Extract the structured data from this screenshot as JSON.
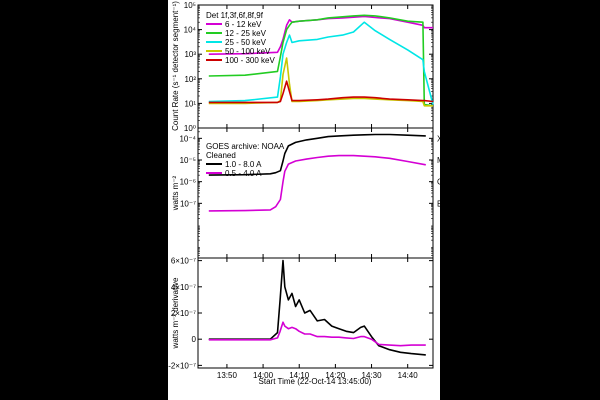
{
  "chart_data": [
    {
      "type": "line",
      "panel": "rhessi-count-rate",
      "ylabel": "Count Rate (s⁻¹ detector segment⁻¹)",
      "yscale": "log",
      "ylim": [
        1,
        100000
      ],
      "yticks": [
        "10⁵",
        "10⁴",
        "10³",
        "10²",
        "10¹",
        "10⁰"
      ],
      "legend_title": "Det 1f,3f,6f,8f,9f",
      "legend_position": "top-left",
      "x_minutes_since_1345": [
        0,
        10,
        19,
        19.8,
        20.5,
        21.5,
        22.3,
        23,
        25,
        30,
        33,
        37,
        40,
        43,
        46,
        50,
        55,
        59.2,
        59.6,
        62
      ],
      "series": [
        {
          "name": "6 - 12 keV",
          "color": "#d400d4",
          "values": [
            1000,
            1050,
            1200,
            2000,
            4000,
            15000,
            25000,
            20000,
            22000,
            25000,
            28000,
            30000,
            32000,
            34000,
            31000,
            28000,
            20000,
            15000,
            12000,
            12000
          ]
        },
        {
          "name": "12 - 25 keV",
          "color": "#22cc22",
          "values": [
            130,
            140,
            200,
            800,
            3000,
            10000,
            15000,
            20000,
            22000,
            25000,
            30000,
            33000,
            36000,
            38000,
            36000,
            30000,
            22000,
            20000,
            9,
            8
          ]
        },
        {
          "name": "25 - 50 keV",
          "color": "#00e6e6",
          "values": [
            12,
            13,
            18,
            120,
            1000,
            3000,
            6000,
            3000,
            3500,
            4000,
            5000,
            6000,
            8000,
            20000,
            9000,
            4000,
            1500,
            600,
            200,
            9
          ]
        },
        {
          "name": "50 - 100 keV",
          "color": "#c8c800",
          "values": [
            10,
            10,
            11,
            13,
            150,
            700,
            60,
            12,
            12,
            13,
            14,
            15,
            16,
            16,
            15,
            14,
            13,
            12,
            8,
            8
          ]
        },
        {
          "name": "100 - 300 keV",
          "color": "#cc0000",
          "values": [
            11,
            11,
            11,
            12,
            25,
            80,
            30,
            13,
            13,
            14,
            15,
            17,
            18,
            18,
            17,
            15,
            14,
            13,
            13,
            12
          ]
        }
      ]
    },
    {
      "type": "line",
      "panel": "goes-flux",
      "ylabel": "watts m⁻²",
      "yscale": "log",
      "ylim": [
        3e-10,
        0.0003
      ],
      "yticks": [
        "10⁻⁴",
        "10⁻⁵",
        "10⁻⁶",
        "10⁻⁷"
      ],
      "right_labels": [
        "X",
        "M",
        "C",
        "B"
      ],
      "legend_title": "GOES archive: NOAA\nCleaned",
      "legend_position": "top-left",
      "x_minutes_since_1345": [
        0,
        10,
        17,
        18.5,
        19.8,
        20.5,
        21,
        22,
        24,
        27,
        30,
        33,
        36,
        40,
        43,
        46,
        50,
        55,
        60
      ],
      "series": [
        {
          "name": "1.0 - 8.0 A",
          "color": "#000000",
          "values": [
            2e-06,
            2.1e-06,
            2.3e-06,
            2.6e-06,
            3.2e-06,
            9e-06,
            2e-05,
            4.5e-05,
            6.5e-05,
            8.5e-05,
            0.0001,
            0.00012,
            0.00013,
            0.00014,
            0.000145,
            0.00015,
            0.00015,
            0.00014,
            0.00013
          ]
        },
        {
          "name": "0.5 - 4.0 A",
          "color": "#d400d4",
          "values": [
            4.5e-08,
            4.6e-08,
            5e-08,
            7e-08,
            1.5e-07,
            1e-06,
            3e-06,
            6.5e-06,
            9e-06,
            1.1e-05,
            1.3e-05,
            1.5e-05,
            1.6e-05,
            1.6e-05,
            1.5e-05,
            1.4e-05,
            1.2e-05,
            8.5e-06,
            6e-06
          ]
        }
      ]
    },
    {
      "type": "line",
      "panel": "goes-derivative",
      "ylabel": "watts m⁻² derivative",
      "ylim": [
        -2.2e-07,
        6.2e-07
      ],
      "yticks": [
        "6×10⁻⁷",
        "4×10⁻⁷",
        "2×10⁻⁷",
        "0",
        "-2×10⁻⁷"
      ],
      "x_minutes_since_1345": [
        0,
        10,
        17,
        19,
        19.7,
        20.5,
        21,
        22,
        23,
        24,
        25,
        26.5,
        28,
        30,
        32,
        34,
        36,
        38,
        40,
        42,
        43,
        45,
        47,
        50,
        53,
        56,
        60
      ],
      "series": [
        {
          "name": "1.0 - 8.0 A",
          "color": "#000000",
          "values": [
            0,
            0,
            0,
            5e-08,
            3e-07,
            6e-07,
            4e-07,
            3e-07,
            3.5e-07,
            2.5e-07,
            3e-07,
            2e-07,
            2.2e-07,
            1.4e-07,
            1.5e-07,
            1e-07,
            8e-08,
            6e-08,
            5e-08,
            9e-08,
            1e-07,
            2e-08,
            -5e-08,
            -8e-08,
            -1e-07,
            -1.1e-07,
            -1.2e-07
          ]
        },
        {
          "name": "0.5 - 4.0 A",
          "color": "#d400d4",
          "values": [
            -5e-09,
            -5e-09,
            -5e-09,
            1e-08,
            6e-08,
            1.3e-07,
            1e-07,
            8e-08,
            9e-08,
            8e-08,
            6e-08,
            4e-08,
            4e-08,
            2e-08,
            2e-08,
            1.5e-08,
            1.5e-08,
            1e-08,
            5e-09,
            2e-08,
            2e-08,
            0,
            -4e-08,
            -4.5e-08,
            -5e-08,
            -4.5e-08,
            -4.5e-08
          ]
        }
      ]
    }
  ],
  "x_axis": {
    "xlim_minutes_since_1345": [
      -3,
      62
    ],
    "tick_minutes": [
      5,
      15,
      25,
      35,
      45,
      55
    ],
    "tick_labels": [
      "13:50",
      "14:00",
      "14:10",
      "14:20",
      "14:30",
      "14:40"
    ],
    "xlabel": "Start Time (22-Oct-14 13:45:00)"
  }
}
